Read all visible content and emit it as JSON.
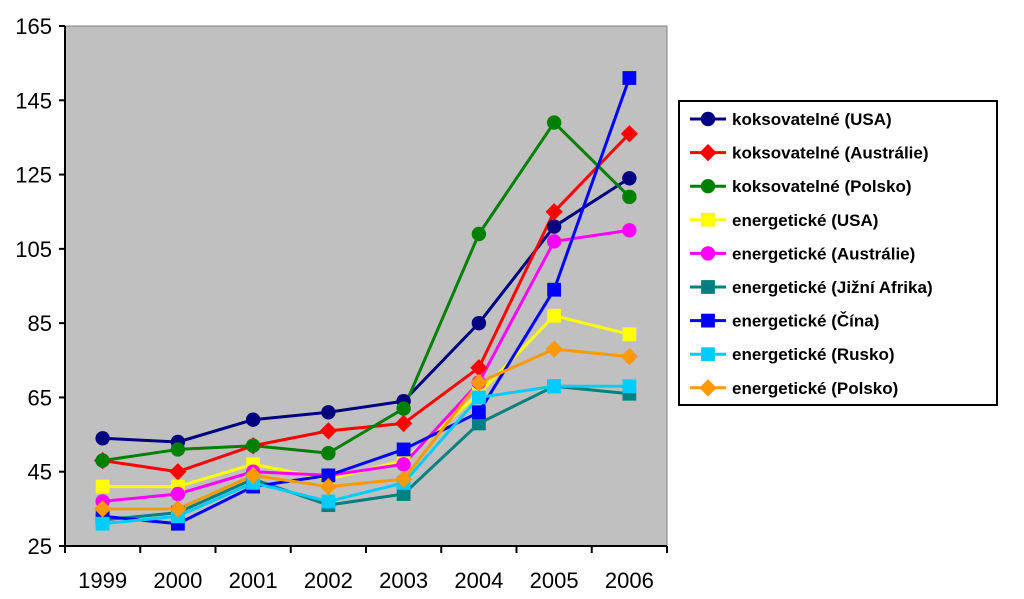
{
  "chart_data": {
    "type": "line",
    "title": "",
    "xlabel": "",
    "ylabel": "",
    "categories": [
      "1999",
      "2000",
      "2001",
      "2002",
      "2003",
      "2004",
      "2005",
      "2006"
    ],
    "ylim": [
      25,
      165
    ],
    "yticks": [
      25,
      45,
      65,
      85,
      105,
      125,
      145,
      165
    ],
    "grid": false,
    "plot_background": "#c0c0c0",
    "legend_position": "right",
    "series": [
      {
        "name": "koksovatelné (USA)",
        "color": "#000080",
        "marker": "circle",
        "values": [
          54,
          53,
          59,
          61,
          64,
          85,
          111,
          124
        ]
      },
      {
        "name": "koksovatelné (Austrálie)",
        "color": "#ff0000",
        "marker": "diamond",
        "values": [
          48,
          45,
          52,
          56,
          58,
          73,
          115,
          136
        ]
      },
      {
        "name": "koksovatelné (Polsko)",
        "color": "#008000",
        "marker": "circle",
        "values": [
          48,
          51,
          52,
          50,
          62,
          109,
          139,
          119
        ]
      },
      {
        "name": "energetické (USA)",
        "color": "#ffff00",
        "marker": "square",
        "values": [
          41,
          41,
          47,
          43,
          48,
          66,
          87,
          82
        ]
      },
      {
        "name": "energetické (Austrálie)",
        "color": "#ff00ff",
        "marker": "circle",
        "values": [
          37,
          39,
          45,
          44,
          47,
          69,
          107,
          110
        ]
      },
      {
        "name": "energetické (Jižní Afrika)",
        "color": "#008080",
        "marker": "square",
        "values": [
          32,
          34,
          43,
          36,
          39,
          58,
          68,
          66
        ]
      },
      {
        "name": "energetické (Čína)",
        "color": "#0000ff",
        "marker": "square",
        "values": [
          33,
          31,
          41,
          44,
          51,
          61,
          94,
          151
        ]
      },
      {
        "name": "energetické (Rusko)",
        "color": "#00ccff",
        "marker": "square",
        "values": [
          31,
          33,
          42,
          37,
          42,
          65,
          68,
          68
        ]
      },
      {
        "name": "energetické (Polsko)",
        "color": "#ff9900",
        "marker": "diamond",
        "values": [
          35,
          35,
          44,
          41,
          43,
          69,
          78,
          76
        ]
      }
    ]
  }
}
